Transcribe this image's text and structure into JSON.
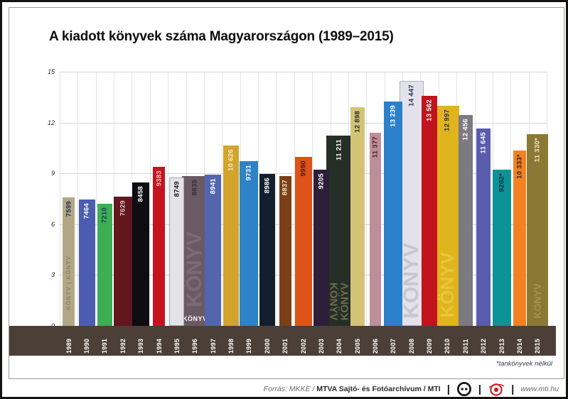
{
  "page": {
    "title": "A kiadott könyvek száma Magyarországon (1989–2015)",
    "footnote": "*tankönyvek nélkül",
    "footer": {
      "source_prefix": "Forrás: MKKE /",
      "source_bold": "MTVA Sajtó- és Fotóarchívum / MTI",
      "separator": "|",
      "website": "www.mti.hu",
      "logos": [
        "mti-logo",
        "mtva-logo"
      ]
    }
  },
  "colors": {
    "band": "#4b3f37",
    "vertical_grid": "#e4e4e4",
    "horizontal_grid": "#d7d7d7",
    "year_label_text": "#ffffff",
    "mti_logo": "#1a1a1a",
    "mtva_logo": "#c9252c"
  },
  "chart_data": {
    "type": "bar",
    "title": "A kiadott könyvek száma Magyarországon (1989–2015)",
    "note": "*tankönyvek nélkül",
    "xlabel": "",
    "ylabel": "",
    "y_axis_unit": "thousands of books",
    "ylim": [
      0,
      15000
    ],
    "yticks": [
      0,
      3000,
      6000,
      9000,
      12000,
      15000
    ],
    "ytick_labels": [
      "0",
      "3",
      "6",
      "9",
      "12",
      "15"
    ],
    "grid": true,
    "legend": false,
    "categories": [
      "1989",
      "1990",
      "1991",
      "1992",
      "1993",
      "1994",
      "1995",
      "1996",
      "1997",
      "1998",
      "1999",
      "2000",
      "2001",
      "2002",
      "2003",
      "2004",
      "2005",
      "2006",
      "2007",
      "2008",
      "2009",
      "2010",
      "2011",
      "2012",
      "2013",
      "2014",
      "2015"
    ],
    "values": [
      7599,
      7464,
      7210,
      7629,
      8458,
      9383,
      8749,
      8835,
      8941,
      10626,
      9731,
      8986,
      8837,
      9990,
      9205,
      11211,
      12898,
      11377,
      13239,
      14447,
      13562,
      12997,
      12456,
      11645,
      9202,
      10333,
      11330
    ],
    "value_labels": [
      "7599",
      "7464",
      "7210",
      "7629",
      "8458",
      "9383",
      "8749",
      "8835",
      "8941",
      "10 626",
      "9731",
      "8986",
      "8837",
      "9990",
      "9205",
      "11 211",
      "12 898",
      "11 377",
      "13 239",
      "14 447",
      "13 562",
      "12 997",
      "12 456",
      "11 645",
      "9202*",
      "10 333*",
      "11 330*"
    ],
    "bars": [
      {
        "year": "1989",
        "value": 7599,
        "label": "7599",
        "color": "#b2a888",
        "label_color": "#232f55",
        "w": 17,
        "spine": {
          "text": "KÖNYV | KÖNYV",
          "color": "#8d8465",
          "size": 8,
          "align": "center",
          "spacing": 1
        }
      },
      {
        "year": "1990",
        "value": 7464,
        "label": "7464",
        "color": "#4c5cb0",
        "label_color": "#ffffff",
        "w": 23
      },
      {
        "year": "1991",
        "value": 7210,
        "label": "7210",
        "color": "#3eae52",
        "label_color": "#173a5e",
        "w": 21
      },
      {
        "year": "1992",
        "value": 7629,
        "label": "7629",
        "color": "#62171f",
        "label_color": "#e3bfc1",
        "w": 26
      },
      {
        "year": "1993",
        "value": 8458,
        "label": "8458",
        "color": "#0e0d12",
        "label_color": "#ffffff",
        "w": 24
      },
      {
        "year": "1994",
        "value": 9383,
        "label": "9383",
        "color": "#c51420",
        "label_color": "#f0bfb8",
        "w": 17
      },
      {
        "year": "1995",
        "value": 8749,
        "label": "8749",
        "color": "#e3e2e7",
        "label_color": "#18181c",
        "w": 21,
        "edge": "#a8a8b2"
      },
      {
        "year": "1996",
        "value": 8835,
        "label": "8835",
        "color": "#695a63",
        "label_color": "#362c33",
        "w": 36,
        "spine": {
          "text": "KÖNYV",
          "color": "#7a6b74",
          "size": 30,
          "align": "bottom",
          "bottom": 26
        },
        "spine_bottom_label": {
          "text": "KÖNYV",
          "color": "#ffffff"
        }
      },
      {
        "year": "1997",
        "value": 8941,
        "label": "8941",
        "color": "#5365ad",
        "label_color": "#ffffff",
        "w": 23
      },
      {
        "year": "1998",
        "value": 10626,
        "label": "10 626",
        "color": "#d2a42b",
        "label_color": "#f6ecca",
        "w": 22
      },
      {
        "year": "1999",
        "value": 9731,
        "label": "9731",
        "color": "#2f82c6",
        "label_color": "#ffffff",
        "w": 26
      },
      {
        "year": "2000",
        "value": 8986,
        "label": "8986",
        "color": "#131f2d",
        "label_color": "#ffffff",
        "w": 22
      },
      {
        "year": "2001",
        "value": 8837,
        "label": "8837",
        "color": "#7b4016",
        "label_color": "#f2dfc4",
        "w": 17
      },
      {
        "year": "2002",
        "value": 9990,
        "label": "9990",
        "color": "#de5317",
        "label_color": "#4f120d",
        "w": 24
      },
      {
        "year": "2003",
        "value": 9205,
        "label": "9205",
        "color": "#2d1e39",
        "label_color": "#ffffff",
        "w": 22
      },
      {
        "year": "2004",
        "value": 11211,
        "label": "11 211",
        "color": "#252f28",
        "label_color": "#ffffff",
        "w": 36,
        "spine": {
          "text": "KÖNYV",
          "color": "#6f6b49",
          "size": 15,
          "align": "bottom",
          "bottom": 8,
          "mirror": true
        }
      },
      {
        "year": "2005",
        "value": 12898,
        "label": "12 898",
        "color": "#d2c377",
        "label_color": "#20301f",
        "w": 20
      },
      {
        "year": "2006",
        "value": 11377,
        "label": "11 377",
        "color": "#bc8e9a",
        "label_color": "#541722",
        "w": 16
      },
      {
        "year": "2007",
        "value": 13239,
        "label": "13 239",
        "color": "#2c80ca",
        "label_color": "#ffffff",
        "w": 26
      },
      {
        "year": "2008",
        "value": 14447,
        "label": "14 447",
        "color": "#e3e2eb",
        "label_color": "#263152",
        "w": 34,
        "edge": "#b0b0bc",
        "spine": {
          "text": "KÖNYV",
          "color": "#c6c6d1",
          "size": 30,
          "align": "bottom",
          "bottom": 10
        }
      },
      {
        "year": "2009",
        "value": 13562,
        "label": "13 562",
        "color": "#c2141d",
        "label_color": "#ffffff",
        "w": 22
      },
      {
        "year": "2010",
        "value": 12997,
        "label": "12 997",
        "color": "#dfb41d",
        "label_color": "#2b3147",
        "w": 34,
        "spine": {
          "text": "KÖNYV",
          "color": "#eac53e",
          "size": 26,
          "align": "bottom",
          "bottom": 12
        }
      },
      {
        "year": "2011",
        "value": 12456,
        "label": "12 456",
        "color": "#7b7a80",
        "label_color": "#ffffff",
        "w": 20
      },
      {
        "year": "2012",
        "value": 11645,
        "label": "11 645",
        "color": "#5a5cae",
        "label_color": "#ffffff",
        "w": 20
      },
      {
        "year": "2013",
        "value": 9202,
        "label": "9202*",
        "color": "#0d9295",
        "label_color": "#122c40",
        "w": 26
      },
      {
        "year": "2014",
        "value": 10333,
        "label": "10 333*",
        "color": "#f18123",
        "label_color": "#2e2415",
        "w": 18
      },
      {
        "year": "2015",
        "value": 11330,
        "label": "11 330*",
        "color": "#8a7934",
        "label_color": "#efe6c4",
        "w": 30,
        "spine": {
          "text": "KÖNYV",
          "color": "#a3934a",
          "size": 14,
          "align": "bottom",
          "bottom": 10
        }
      }
    ]
  }
}
